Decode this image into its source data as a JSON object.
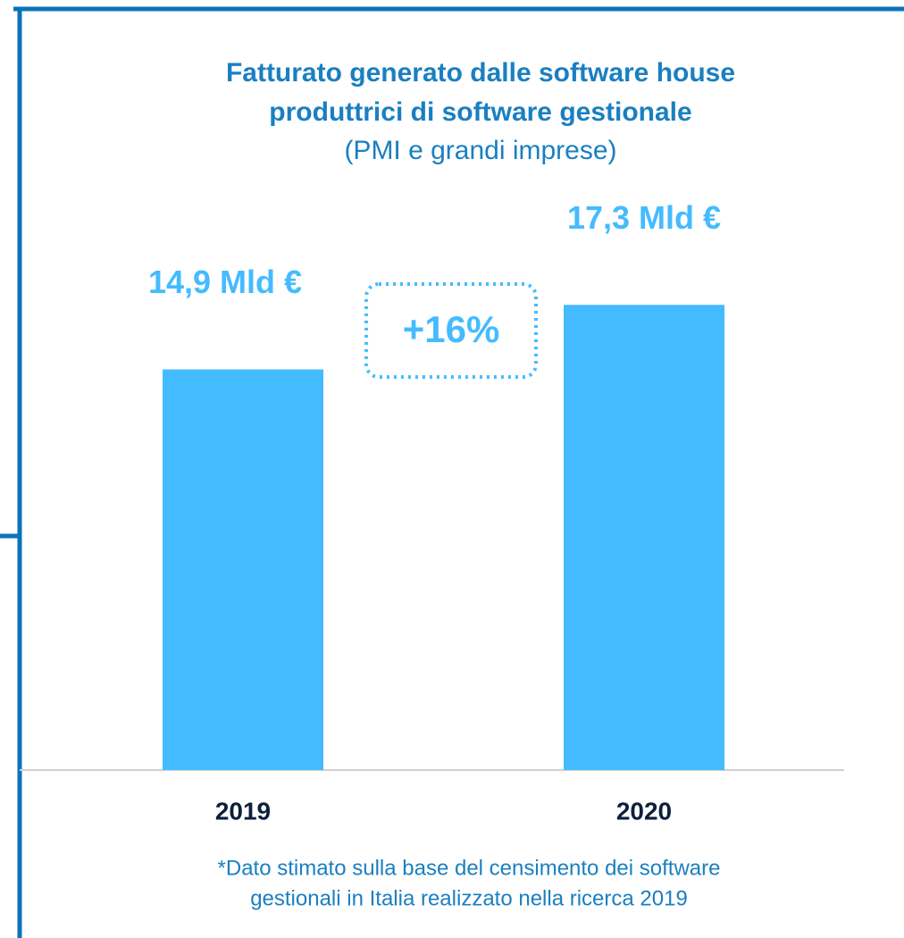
{
  "chart_data": {
    "type": "bar",
    "title": [
      "Fatturato generato dalle software house",
      "produttrici di software gestionale"
    ],
    "subtitle": "(PMI e grandi imprese)",
    "categories": [
      "2019",
      "2020"
    ],
    "values": [
      14.9,
      17.3
    ],
    "value_labels": [
      "14,9 Mld €",
      "17,3 Mld €"
    ],
    "color": "#45bbff",
    "ylim": [
      0,
      20
    ],
    "annotation": "+16%",
    "footnote": [
      "*Dato stimato sulla base del censimento dei software",
      "gestionali in Italia realizzato nella ricerca 2019"
    ]
  }
}
